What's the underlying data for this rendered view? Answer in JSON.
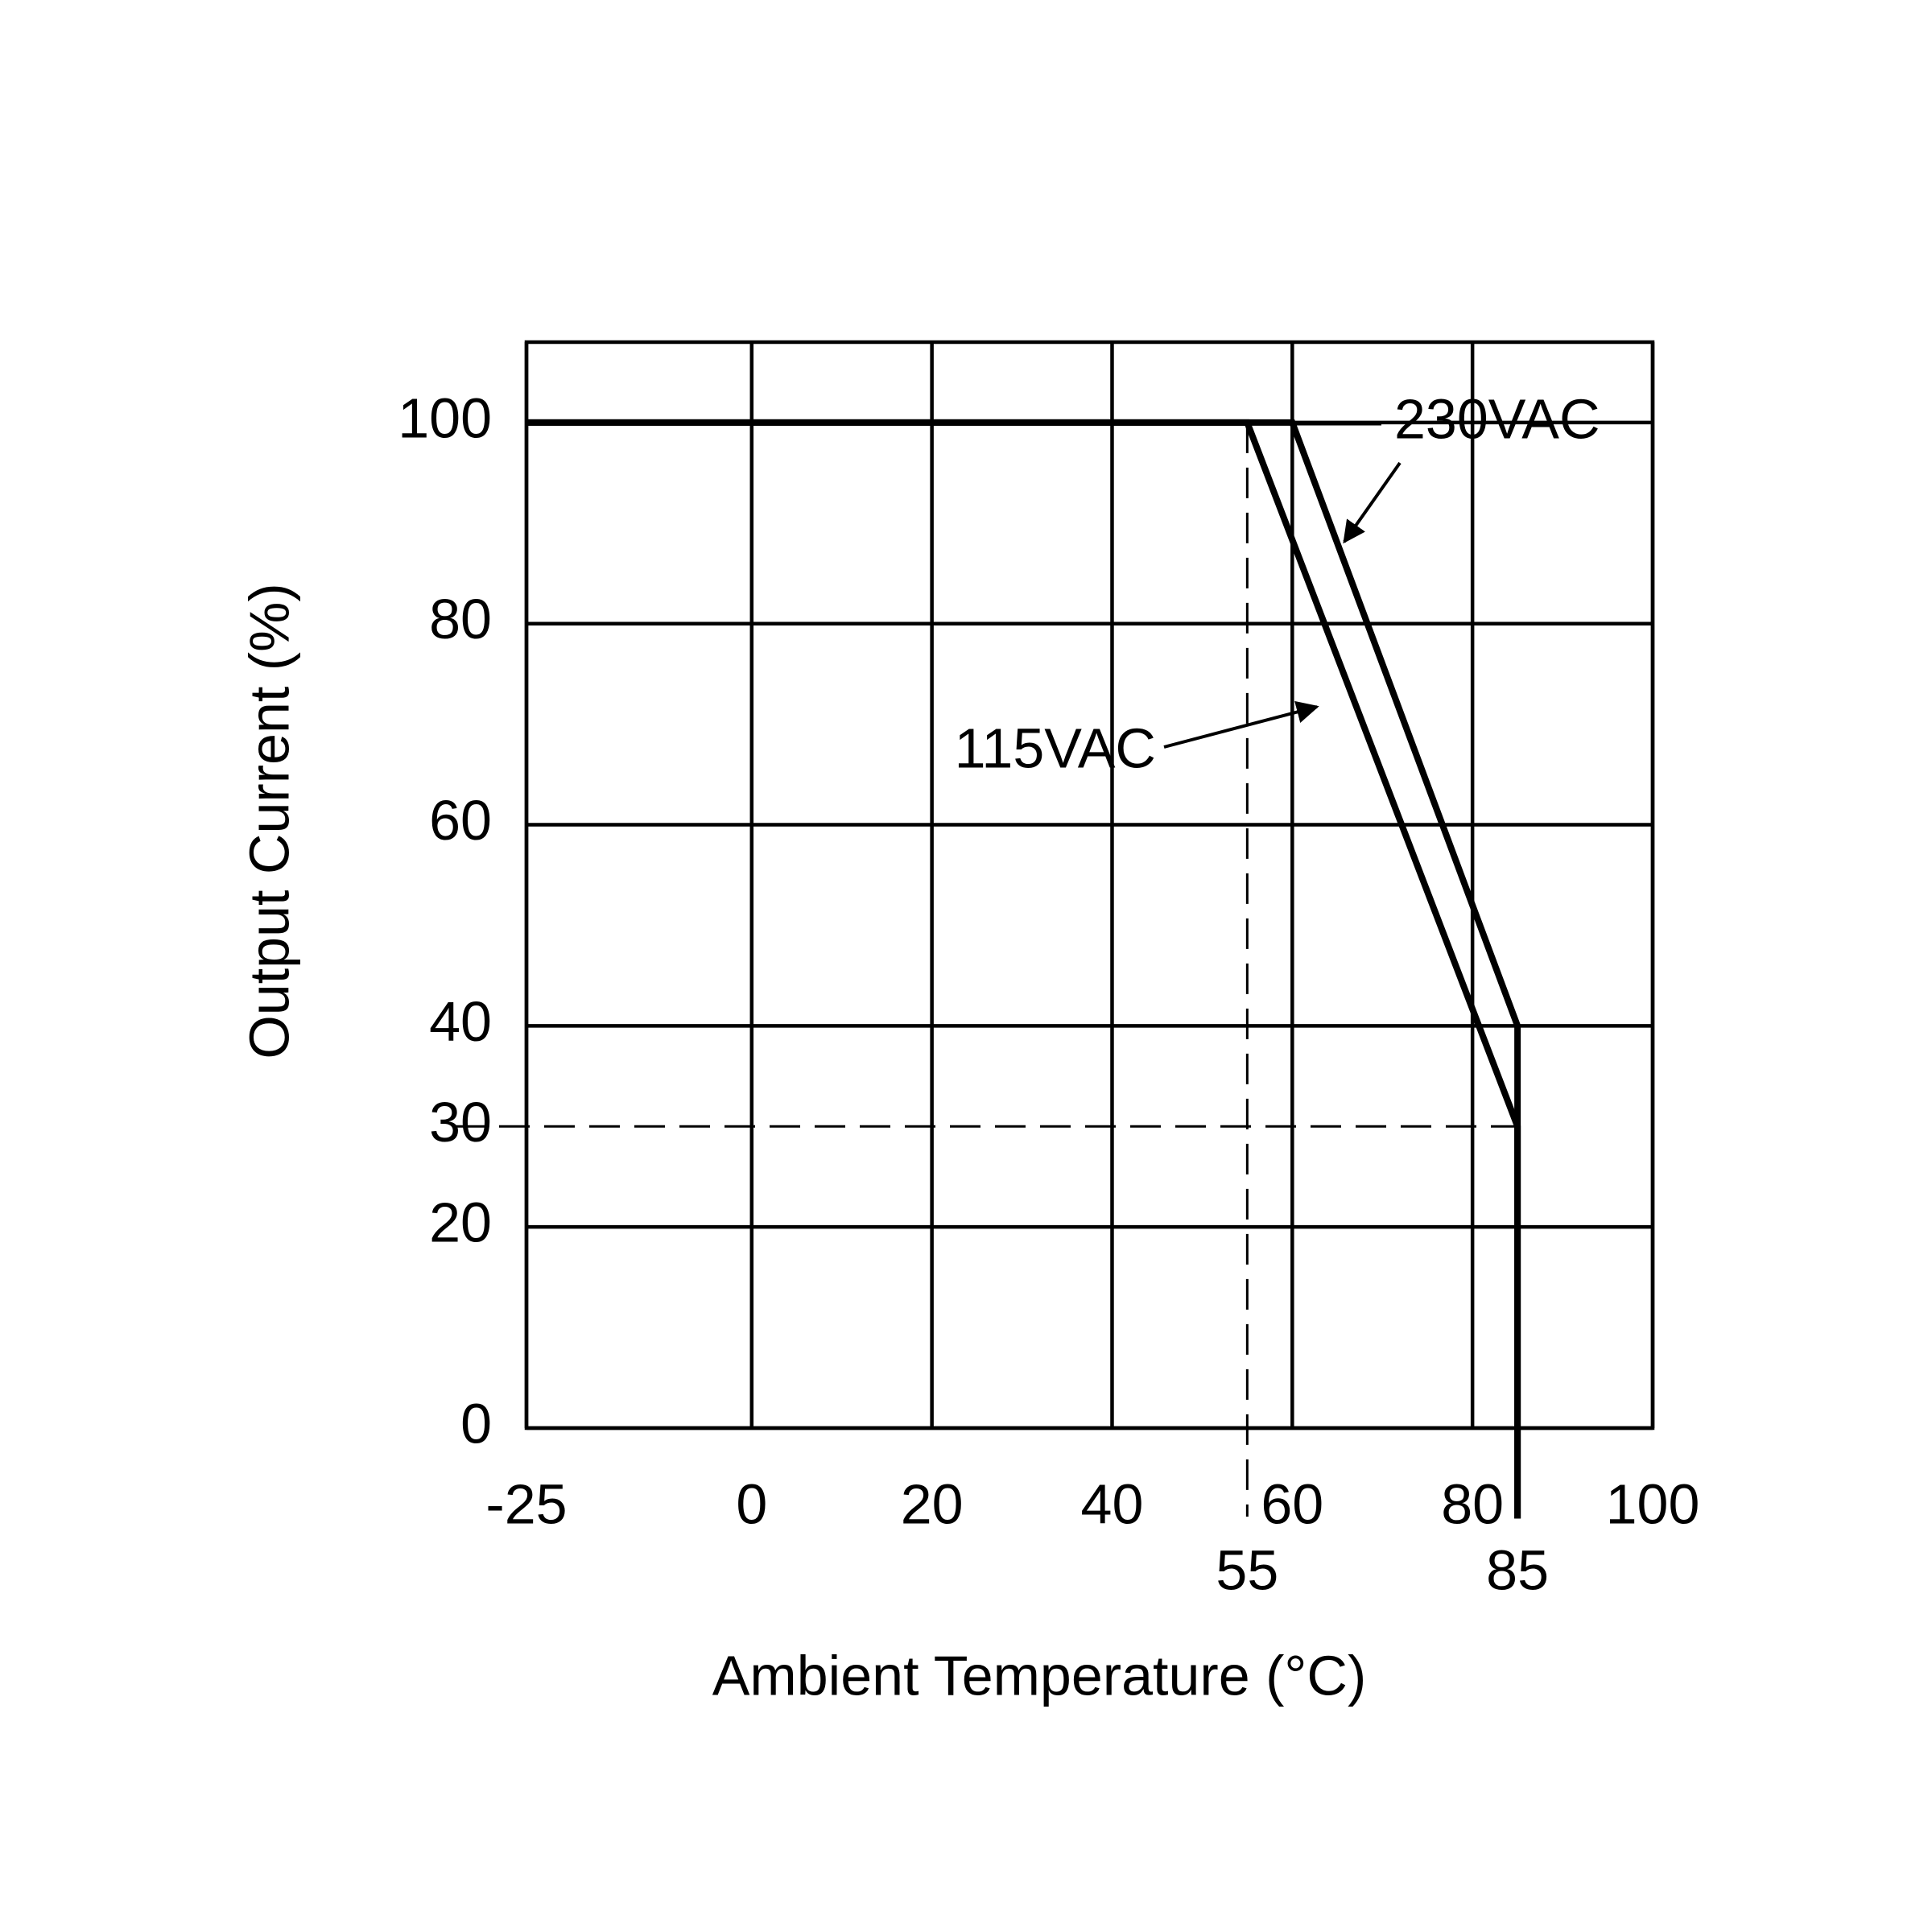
{
  "chart_data": {
    "type": "line",
    "xlabel": "Ambient Temperature (°C)",
    "ylabel": "Output Current (%)",
    "xlim": [
      -25,
      100
    ],
    "ylim": [
      0,
      108
    ],
    "xticks": [
      -25,
      0,
      20,
      40,
      60,
      80,
      100
    ],
    "xticks_secondary": [
      {
        "value": 55,
        "style": "dashed"
      },
      {
        "value": 85
      }
    ],
    "yticks": [
      0,
      20,
      {
        "value": 30,
        "style": "dashed"
      },
      40,
      60,
      80,
      100
    ],
    "grid": true,
    "series": [
      {
        "name": "230VAC",
        "color": "#000000",
        "x": [
          -25,
          60,
          85,
          85
        ],
        "values": [
          100,
          100,
          40,
          -9
        ]
      },
      {
        "name": "115VAC",
        "color": "#000000",
        "x": [
          -25,
          55,
          85,
          85
        ],
        "values": [
          100,
          100,
          30,
          -9
        ]
      }
    ]
  }
}
